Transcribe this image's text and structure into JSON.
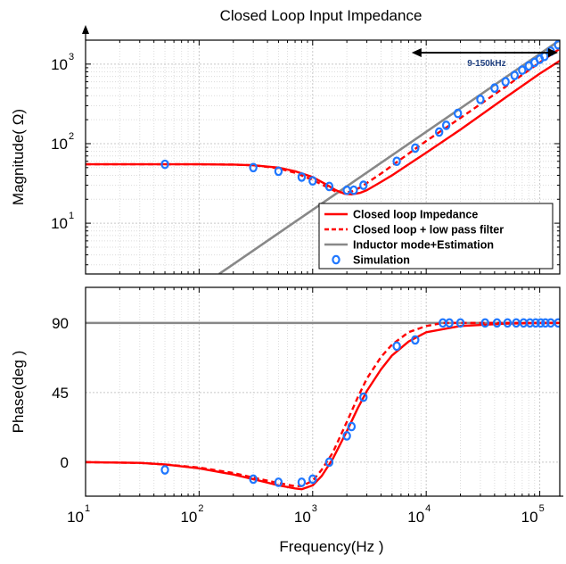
{
  "chart_data": [
    {
      "type": "line",
      "title": "Closed Loop Input Impedance",
      "ylabel": "Magnitude( Ω)",
      "xscale": "log",
      "yscale": "log",
      "xlim": [
        10,
        150000
      ],
      "ylim": [
        2.3,
        2000
      ],
      "x_ticks": [
        {
          "base": "10",
          "exp": "1"
        },
        {
          "base": "10",
          "exp": "2"
        },
        {
          "base": "10",
          "exp": "3"
        },
        {
          "base": "10",
          "exp": "4"
        },
        {
          "base": "10",
          "exp": "5"
        }
      ],
      "y_ticks": [
        {
          "base": "10",
          "exp": "1"
        },
        {
          "base": "10",
          "exp": "2"
        },
        {
          "base": "10",
          "exp": "3"
        }
      ],
      "grid": true,
      "legend_position": "bottom-right",
      "annotation": "9-150kHz",
      "annotation_range": [
        8000,
        150000
      ],
      "series": [
        {
          "name": "Closed loop Impedance",
          "style": "solid",
          "color": "#ff0000",
          "x": [
            10,
            50,
            100,
            200,
            300,
            500,
            700,
            1000,
            1300,
            1600,
            1900,
            2200,
            2600,
            3000,
            4000,
            5000,
            7000,
            10000,
            20000,
            50000,
            100000,
            150000
          ],
          "y": [
            55,
            55,
            55,
            54.5,
            53.5,
            50,
            45,
            38,
            31,
            26,
            23.5,
            23,
            24,
            26,
            33,
            40,
            55,
            77,
            150,
            380,
            760,
            1100
          ]
        },
        {
          "name": "Closed loop + low pass filter",
          "style": "dashed",
          "color": "#ff0000",
          "x": [
            10,
            50,
            100,
            200,
            300,
            500,
            700,
            1000,
            1300,
            1600,
            1900,
            2200,
            2600,
            3000,
            4000,
            5000,
            7000,
            10000,
            20000,
            50000,
            100000,
            150000
          ],
          "y": [
            55,
            55,
            55,
            54.5,
            53.5,
            49,
            43,
            35,
            29,
            25,
            24,
            25,
            28,
            32,
            42,
            53,
            75,
            108,
            210,
            520,
            1050,
            1560
          ]
        },
        {
          "name": "Inductor mode+Estimation",
          "style": "solid",
          "color": "#888888",
          "x": [
            150,
            150000
          ],
          "y": [
            2.3,
            2000
          ]
        },
        {
          "name": "Simulation",
          "style": "marker",
          "color": "#1f77ff",
          "x": [
            50,
            300,
            500,
            800,
            1000,
            1400,
            2000,
            2300,
            2800,
            5500,
            8000,
            13000,
            15000,
            19000,
            30000,
            40000,
            50000,
            60000,
            70000,
            80000,
            90000,
            100000,
            110000,
            125000,
            145000
          ],
          "y": [
            55,
            50,
            45,
            38,
            34,
            29,
            26,
            26,
            30,
            60,
            88,
            140,
            170,
            240,
            360,
            500,
            600,
            720,
            840,
            950,
            1050,
            1150,
            1250,
            1450,
            1750
          ]
        }
      ]
    },
    {
      "type": "line",
      "ylabel": "Phase(deg )",
      "xlabel": "Frequency(Hz )",
      "xscale": "log",
      "xlim": [
        10,
        150000
      ],
      "ylim": [
        -22,
        113
      ],
      "y_ticks": [
        "0",
        "45",
        "90"
      ],
      "grid": true,
      "series": [
        {
          "style": "solid",
          "color": "#888888",
          "x": [
            10,
            150000
          ],
          "y": [
            90,
            90
          ]
        },
        {
          "style": "solid",
          "color": "#ff0000",
          "x": [
            10,
            30,
            50,
            100,
            200,
            300,
            500,
            700,
            800,
            1000,
            1200,
            1500,
            2000,
            2500,
            3000,
            4000,
            5000,
            7000,
            10000,
            20000,
            50000,
            100000,
            150000
          ],
          "y": [
            0,
            -0.5,
            -1.5,
            -4,
            -8,
            -11,
            -15,
            -17,
            -17.5,
            -15,
            -9,
            2,
            20,
            35,
            46,
            60,
            69,
            78,
            84,
            88,
            89.5,
            90,
            90
          ]
        },
        {
          "style": "dashed",
          "color": "#ff0000",
          "x": [
            10,
            30,
            50,
            100,
            200,
            300,
            500,
            700,
            800,
            1000,
            1200,
            1500,
            2000,
            2500,
            3000,
            4000,
            5000,
            7000,
            10000,
            14000,
            20000,
            50000,
            150000
          ],
          "y": [
            0,
            -0.5,
            -1.5,
            -3.5,
            -7,
            -10,
            -13.5,
            -15.5,
            -15.5,
            -12,
            -5,
            6,
            26,
            42,
            54,
            68,
            76,
            84,
            88,
            90,
            90,
            90,
            90
          ]
        },
        {
          "style": "marker",
          "color": "#1f77ff",
          "x": [
            50,
            300,
            500,
            800,
            1000,
            1400,
            2000,
            2200,
            2800,
            5500,
            8000,
            14000,
            16000,
            20000,
            33000,
            42000,
            52000,
            62000,
            72000,
            82000,
            92000,
            102000,
            112000,
            125000,
            145000
          ],
          "y": [
            -5,
            -11,
            -13,
            -13,
            -11,
            0,
            17,
            23,
            42,
            75,
            79,
            90,
            90,
            90,
            90,
            90,
            90,
            90,
            90,
            90,
            90,
            90,
            90,
            90,
            90
          ]
        }
      ]
    }
  ]
}
